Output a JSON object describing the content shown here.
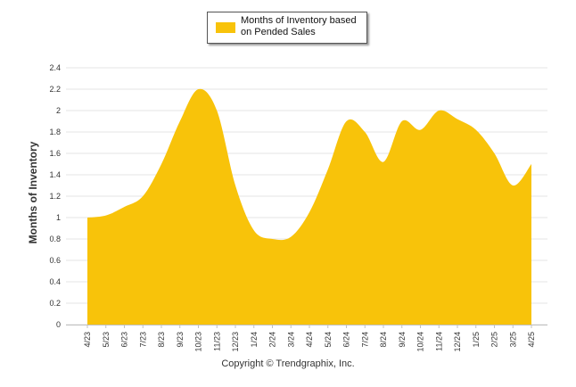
{
  "chart_data": {
    "type": "area",
    "series": [
      {
        "name": "Months of Inventory based on Pended Sales",
        "color": "#F8C30A",
        "values": [
          1.0,
          1.02,
          1.1,
          1.2,
          1.5,
          1.9,
          2.2,
          2.0,
          1.3,
          0.88,
          0.8,
          0.82,
          1.05,
          1.45,
          1.9,
          1.8,
          1.52,
          1.9,
          1.82,
          2.0,
          1.92,
          1.82,
          1.6,
          1.3,
          1.5
        ]
      }
    ],
    "categories": [
      "4/23",
      "5/23",
      "6/23",
      "7/23",
      "8/23",
      "9/23",
      "10/23",
      "11/23",
      "12/23",
      "1/24",
      "2/24",
      "3/24",
      "4/24",
      "5/24",
      "6/24",
      "7/24",
      "8/24",
      "9/24",
      "10/24",
      "11/24",
      "12/24",
      "1/25",
      "2/25",
      "3/25",
      "4/25"
    ],
    "ylabel": "Months of Inventory",
    "ylim": [
      0,
      2.4
    ],
    "yticks": [
      "0",
      "0.2",
      "0.4",
      "0.6",
      "0.8",
      "1",
      "1.2",
      "1.4",
      "1.6",
      "1.8",
      "2",
      "2.2",
      "2.4"
    ],
    "grid": true,
    "legend_position": "top-center"
  },
  "legend": {
    "label_line1": "Months of Inventory based",
    "label_line2": "on Pended Sales"
  },
  "footer": {
    "copyright": "Copyright © Trendgraphix, Inc."
  }
}
